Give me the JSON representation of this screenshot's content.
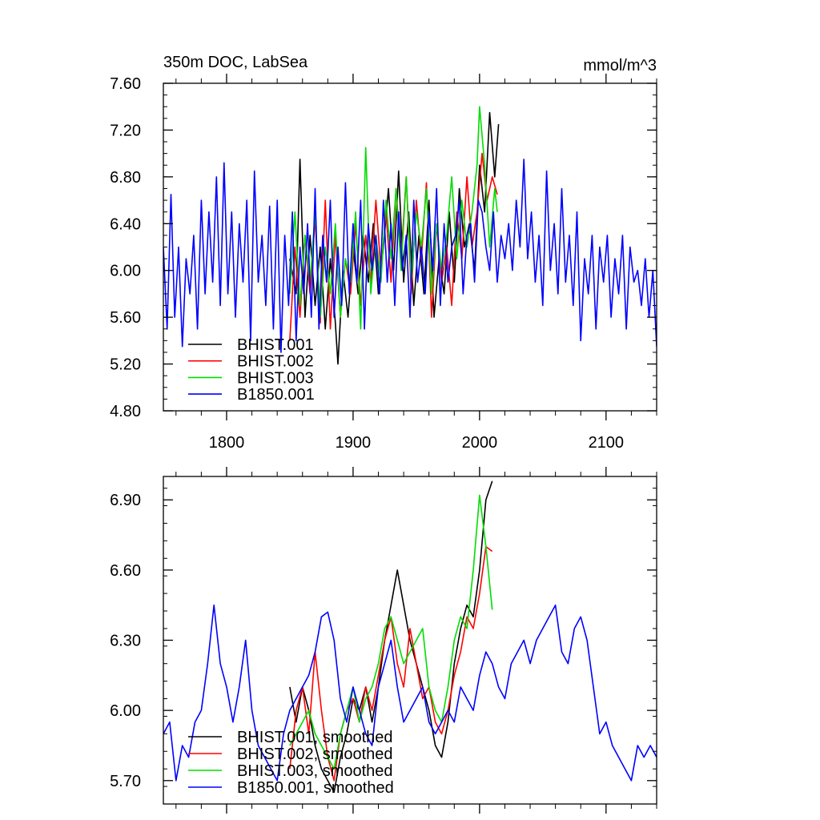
{
  "chart_data": [
    {
      "type": "line",
      "title": "350m DOC, LabSea",
      "units": "mmol/m^3",
      "xlim": [
        1750,
        2140
      ],
      "ylim": [
        4.8,
        7.6
      ],
      "x_ticks": [
        1800,
        1900,
        2000,
        2100
      ],
      "x_tick_labels": [
        "1800",
        "1900",
        "2000",
        "2100"
      ],
      "y_ticks": [
        4.8,
        5.2,
        5.6,
        6.0,
        6.4,
        6.8,
        7.2,
        7.6
      ],
      "y_tick_labels": [
        "4.80",
        "5.20",
        "5.60",
        "6.00",
        "6.40",
        "6.80",
        "7.20",
        "7.60"
      ],
      "legend_position": "bottom-left",
      "series": [
        {
          "name": "BHIST.001",
          "color": "#000000",
          "x": [
            1850,
            1855,
            1858,
            1862,
            1866,
            1870,
            1874,
            1878,
            1882,
            1886,
            1888,
            1892,
            1896,
            1900,
            1904,
            1908,
            1912,
            1916,
            1920,
            1924,
            1928,
            1932,
            1936,
            1940,
            1944,
            1948,
            1952,
            1956,
            1960,
            1964,
            1968,
            1972,
            1976,
            1980,
            1984,
            1988,
            1992,
            1996,
            2000,
            2004,
            2008,
            2012,
            2015
          ],
          "y": [
            6.1,
            5.8,
            6.95,
            5.6,
            6.3,
            5.7,
            6.2,
            5.5,
            6.1,
            5.55,
            5.2,
            6.0,
            5.6,
            6.2,
            5.8,
            6.3,
            5.9,
            6.4,
            5.8,
            6.2,
            6.7,
            6.0,
            6.85,
            5.9,
            6.5,
            5.7,
            6.3,
            5.8,
            6.6,
            5.6,
            6.1,
            5.8,
            6.5,
            5.9,
            6.7,
            6.2,
            6.4,
            6.0,
            6.9,
            6.5,
            7.35,
            6.8,
            7.25
          ]
        },
        {
          "name": "BHIST.002",
          "color": "#ff0000",
          "x": [
            1850,
            1854,
            1858,
            1862,
            1866,
            1870,
            1874,
            1878,
            1882,
            1886,
            1890,
            1894,
            1898,
            1902,
            1906,
            1910,
            1914,
            1918,
            1922,
            1926,
            1930,
            1934,
            1938,
            1942,
            1946,
            1950,
            1954,
            1958,
            1962,
            1966,
            1970,
            1974,
            1978,
            1982,
            1986,
            1990,
            1994,
            1998,
            2002,
            2006,
            2010,
            2014
          ],
          "y": [
            5.4,
            6.2,
            5.6,
            6.3,
            5.8,
            6.45,
            5.55,
            6.6,
            5.5,
            6.3,
            5.6,
            6.1,
            5.8,
            6.4,
            5.7,
            6.3,
            5.9,
            6.6,
            6.0,
            6.5,
            5.9,
            6.7,
            6.1,
            6.8,
            5.8,
            6.6,
            6.1,
            6.75,
            5.6,
            6.4,
            5.9,
            6.2,
            5.7,
            6.5,
            6.1,
            6.8,
            6.2,
            6.5,
            7.0,
            6.6,
            6.8,
            6.65
          ]
        },
        {
          "name": "BHIST.003",
          "color": "#00dd00",
          "x": [
            1850,
            1854,
            1858,
            1862,
            1866,
            1870,
            1874,
            1878,
            1882,
            1886,
            1890,
            1894,
            1898,
            1902,
            1906,
            1910,
            1914,
            1918,
            1922,
            1926,
            1930,
            1934,
            1938,
            1942,
            1946,
            1950,
            1954,
            1958,
            1962,
            1966,
            1970,
            1974,
            1978,
            1982,
            1986,
            1990,
            1994,
            1998,
            2000,
            2004,
            2008,
            2012,
            2014
          ],
          "y": [
            5.8,
            6.5,
            5.7,
            6.3,
            5.9,
            6.5,
            5.6,
            6.2,
            5.8,
            6.4,
            5.6,
            6.1,
            5.9,
            6.5,
            5.5,
            7.05,
            5.8,
            6.3,
            5.9,
            6.6,
            6.1,
            6.7,
            6.0,
            6.8,
            5.9,
            6.5,
            6.2,
            6.7,
            5.8,
            6.4,
            6.0,
            6.3,
            6.8,
            6.1,
            6.6,
            6.2,
            6.5,
            6.9,
            7.4,
            6.9,
            6.2,
            6.7,
            6.5
          ]
        },
        {
          "name": "B1850.001",
          "color": "#0000ff",
          "x": [
            1750,
            1753,
            1756,
            1759,
            1762,
            1765,
            1768,
            1771,
            1774,
            1777,
            1780,
            1783,
            1786,
            1789,
            1792,
            1795,
            1798,
            1801,
            1804,
            1807,
            1810,
            1813,
            1816,
            1819,
            1822,
            1825,
            1828,
            1831,
            1834,
            1837,
            1840,
            1843,
            1846,
            1849,
            1852,
            1855,
            1858,
            1861,
            1864,
            1867,
            1870,
            1873,
            1876,
            1879,
            1882,
            1885,
            1888,
            1891,
            1894,
            1897,
            1900,
            1903,
            1906,
            1909,
            1912,
            1915,
            1918,
            1921,
            1924,
            1927,
            1930,
            1933,
            1936,
            1939,
            1942,
            1945,
            1948,
            1951,
            1954,
            1957,
            1960,
            1963,
            1966,
            1969,
            1972,
            1975,
            1978,
            1981,
            1984,
            1987,
            1990,
            1993,
            1996,
            1999,
            2002,
            2005,
            2008,
            2011,
            2014,
            2017,
            2020,
            2023,
            2026,
            2029,
            2032,
            2035,
            2038,
            2041,
            2044,
            2047,
            2050,
            2053,
            2056,
            2059,
            2062,
            2065,
            2068,
            2071,
            2074,
            2077,
            2080,
            2083,
            2086,
            2089,
            2092,
            2095,
            2098,
            2101,
            2104,
            2107,
            2110,
            2113,
            2116,
            2119,
            2122,
            2125,
            2128,
            2131,
            2134,
            2137,
            2140
          ],
          "y": [
            6.2,
            5.5,
            6.65,
            5.6,
            6.2,
            5.35,
            6.1,
            5.8,
            6.3,
            5.5,
            6.6,
            5.8,
            6.5,
            5.9,
            6.8,
            5.7,
            6.92,
            5.8,
            6.5,
            5.6,
            6.4,
            5.9,
            6.6,
            5.4,
            6.85,
            5.9,
            6.3,
            5.7,
            6.55,
            5.5,
            6.6,
            5.3,
            6.3,
            5.7,
            6.5,
            5.4,
            6.2,
            5.8,
            6.4,
            5.6,
            6.7,
            5.5,
            6.3,
            5.9,
            6.6,
            5.6,
            6.2,
            5.7,
            6.75,
            5.8,
            6.4,
            5.9,
            6.6,
            5.5,
            6.4,
            6.0,
            6.3,
            5.8,
            6.6,
            5.9,
            6.4,
            5.7,
            6.5,
            6.0,
            6.3,
            5.6,
            6.6,
            5.9,
            6.2,
            5.8,
            6.5,
            6.0,
            6.7,
            5.7,
            6.4,
            5.9,
            6.2,
            6.3,
            6.6,
            5.8,
            6.3,
            6.4,
            5.9,
            6.6,
            6.5,
            6.2,
            6.0,
            6.5,
            5.9,
            6.3,
            6.1,
            6.4,
            6.0,
            6.6,
            6.2,
            6.95,
            6.1,
            6.5,
            5.9,
            6.3,
            5.7,
            6.85,
            6.0,
            6.4,
            5.8,
            6.7,
            5.9,
            6.3,
            5.7,
            6.5,
            5.4,
            6.1,
            5.8,
            6.3,
            5.5,
            6.2,
            5.9,
            6.3,
            5.6,
            6.1,
            5.8,
            6.3,
            5.5,
            6.2,
            5.9,
            6.0,
            5.7,
            6.1,
            5.6,
            6.0,
            5.35
          ]
        }
      ]
    },
    {
      "type": "line",
      "xlim": [
        1750,
        2140
      ],
      "ylim": [
        5.6,
        7.0
      ],
      "x_ticks": [
        1800,
        1900,
        2000,
        2100
      ],
      "y_ticks": [
        5.7,
        6.0,
        6.3,
        6.6,
        6.9
      ],
      "y_tick_labels": [
        "5.70",
        "6.00",
        "6.30",
        "6.60",
        "6.90"
      ],
      "legend_position": "bottom-left",
      "series": [
        {
          "name": "BHIST.001, smoothed",
          "color": "#000000",
          "x": [
            1850,
            1855,
            1860,
            1865,
            1870,
            1875,
            1880,
            1885,
            1890,
            1895,
            1900,
            1905,
            1910,
            1915,
            1920,
            1925,
            1930,
            1935,
            1940,
            1945,
            1950,
            1955,
            1960,
            1965,
            1970,
            1975,
            1980,
            1985,
            1990,
            1995,
            2000,
            2005,
            2010
          ],
          "y": [
            6.1,
            5.95,
            6.1,
            6.0,
            5.85,
            5.75,
            5.7,
            5.65,
            5.8,
            5.9,
            6.05,
            6.0,
            6.1,
            5.95,
            6.1,
            6.3,
            6.45,
            6.6,
            6.45,
            6.3,
            6.2,
            6.1,
            6.0,
            5.85,
            5.8,
            5.95,
            6.2,
            6.35,
            6.45,
            6.4,
            6.6,
            6.9,
            6.98
          ]
        },
        {
          "name": "BHIST.002, smoothed",
          "color": "#ff0000",
          "x": [
            1850,
            1855,
            1860,
            1865,
            1870,
            1875,
            1880,
            1885,
            1890,
            1895,
            1900,
            1905,
            1910,
            1915,
            1920,
            1925,
            1930,
            1935,
            1940,
            1945,
            1950,
            1955,
            1960,
            1965,
            1970,
            1975,
            1980,
            1985,
            1990,
            1995,
            2000,
            2005,
            2010
          ],
          "y": [
            5.75,
            6.0,
            6.1,
            5.9,
            6.25,
            6.0,
            5.8,
            5.7,
            5.9,
            6.0,
            6.05,
            5.95,
            6.1,
            6.0,
            6.15,
            6.3,
            6.4,
            6.2,
            6.1,
            6.35,
            6.2,
            6.05,
            6.1,
            5.95,
            5.9,
            6.0,
            6.15,
            6.25,
            6.4,
            6.35,
            6.5,
            6.7,
            6.68
          ]
        },
        {
          "name": "BHIST.003, smoothed",
          "color": "#00dd00",
          "x": [
            1850,
            1855,
            1860,
            1865,
            1870,
            1875,
            1880,
            1885,
            1890,
            1895,
            1900,
            1905,
            1910,
            1915,
            1920,
            1925,
            1930,
            1935,
            1940,
            1945,
            1950,
            1955,
            1960,
            1965,
            1970,
            1975,
            1980,
            1985,
            1990,
            1995,
            2000,
            2005,
            2010
          ],
          "y": [
            5.85,
            5.9,
            5.95,
            6.0,
            5.9,
            5.85,
            5.8,
            5.75,
            5.9,
            6.0,
            6.1,
            5.95,
            6.05,
            6.1,
            6.2,
            6.35,
            6.4,
            6.3,
            6.2,
            6.25,
            6.3,
            6.35,
            6.1,
            6.0,
            5.95,
            6.1,
            6.3,
            6.4,
            6.35,
            6.6,
            6.92,
            6.7,
            6.43
          ]
        },
        {
          "name": "B1850.001, smoothed",
          "color": "#0000ff",
          "x": [
            1750,
            1755,
            1760,
            1765,
            1770,
            1775,
            1780,
            1785,
            1790,
            1795,
            1800,
            1805,
            1810,
            1815,
            1820,
            1825,
            1830,
            1835,
            1840,
            1845,
            1850,
            1855,
            1860,
            1865,
            1870,
            1875,
            1880,
            1885,
            1890,
            1895,
            1900,
            1905,
            1910,
            1915,
            1920,
            1925,
            1930,
            1935,
            1940,
            1945,
            1950,
            1955,
            1960,
            1965,
            1970,
            1975,
            1980,
            1985,
            1990,
            1995,
            2000,
            2005,
            2010,
            2015,
            2020,
            2025,
            2030,
            2035,
            2040,
            2045,
            2050,
            2055,
            2060,
            2065,
            2070,
            2075,
            2080,
            2085,
            2090,
            2095,
            2100,
            2105,
            2110,
            2115,
            2120,
            2125,
            2130,
            2135,
            2140
          ],
          "y": [
            5.9,
            5.95,
            5.7,
            5.85,
            5.8,
            5.95,
            6.0,
            6.2,
            6.45,
            6.2,
            6.1,
            5.95,
            6.1,
            6.3,
            6.0,
            5.85,
            5.8,
            5.75,
            5.7,
            5.9,
            6.0,
            6.05,
            6.1,
            6.15,
            6.25,
            6.4,
            6.42,
            6.3,
            6.05,
            5.95,
            6.1,
            6.0,
            5.9,
            5.85,
            6.1,
            6.2,
            6.3,
            6.1,
            5.95,
            6.0,
            6.05,
            6.1,
            5.95,
            5.9,
            5.95,
            6.0,
            5.95,
            6.1,
            6.05,
            6.0,
            6.15,
            6.25,
            6.2,
            6.1,
            6.05,
            6.2,
            6.25,
            6.3,
            6.2,
            6.3,
            6.35,
            6.4,
            6.45,
            6.25,
            6.2,
            6.35,
            6.4,
            6.3,
            6.1,
            5.9,
            5.95,
            5.85,
            5.8,
            5.75,
            5.7,
            5.85,
            5.8,
            5.85,
            5.8
          ]
        }
      ]
    }
  ]
}
